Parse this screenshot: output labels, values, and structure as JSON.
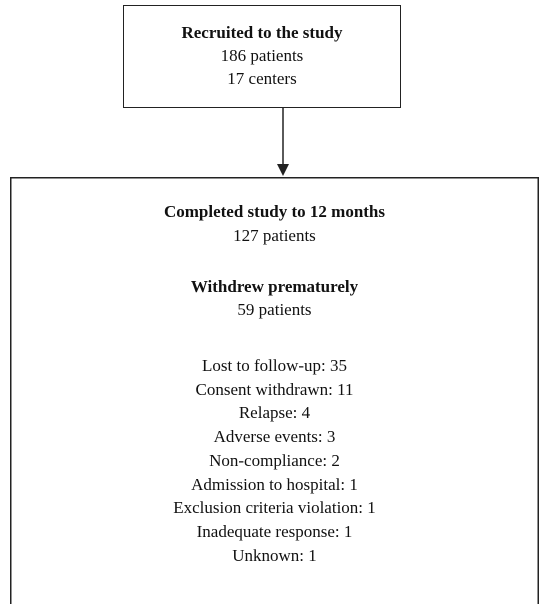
{
  "nodes": [
    {
      "title": "Recruited to the study",
      "lines": [
        "186 patients",
        "17 centers"
      ]
    },
    {
      "sections": [
        {
          "title": "Completed study to 12 months",
          "lines": [
            "127 patients"
          ]
        },
        {
          "title": "Withdrew prematurely",
          "lines": [
            "59 patients"
          ]
        }
      ],
      "reasons": [
        "Lost to follow-up: 35",
        "Consent withdrawn: 11",
        "Relapse: 4",
        "Adverse events: 3",
        "Non-compliance: 2",
        "Admission to hospital: 1",
        "Exclusion criteria violation: 1",
        "Inadequate response: 1",
        "Unknown: 1"
      ]
    }
  ]
}
